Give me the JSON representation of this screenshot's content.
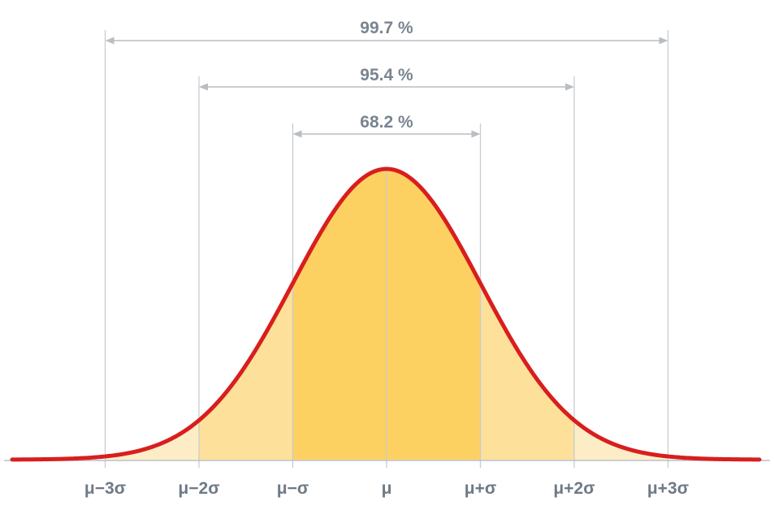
{
  "diagram": {
    "type": "normal-distribution",
    "colors": {
      "curve": "#d81e1e",
      "band_1sigma": "#fdd161",
      "band_2sigma": "#fde099",
      "band_3sigma": "#fdedc6",
      "guide_line": "#c8ccd0",
      "arrow": "#b9bec3",
      "percent_text": "#7a8590",
      "tick_text": "#6f7a85",
      "axis": "#b9bec3"
    },
    "intervals": [
      {
        "sigma": 1,
        "label": "68.2 %"
      },
      {
        "sigma": 2,
        "label": "95.4 %"
      },
      {
        "sigma": 3,
        "label": "99.7 %"
      }
    ],
    "ticks": [
      {
        "sigma": -3,
        "label": "μ−3σ"
      },
      {
        "sigma": -2,
        "label": "μ−2σ"
      },
      {
        "sigma": -1,
        "label": "μ−σ"
      },
      {
        "sigma": 0,
        "label": "μ"
      },
      {
        "sigma": 1,
        "label": "μ+σ"
      },
      {
        "sigma": 2,
        "label": "μ+2σ"
      },
      {
        "sigma": 3,
        "label": "μ+3σ"
      }
    ]
  }
}
